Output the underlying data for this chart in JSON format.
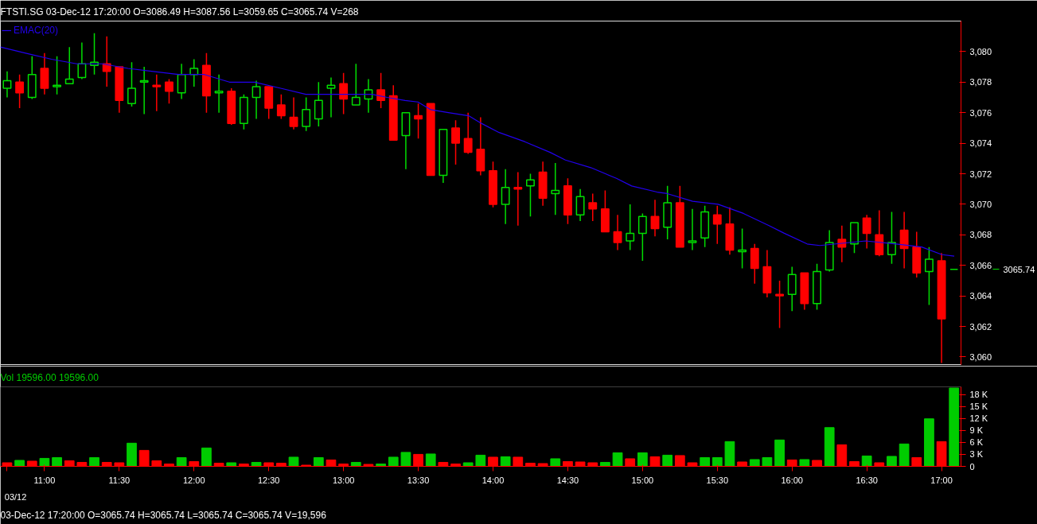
{
  "chart_data": [
    {
      "type": "candlestick",
      "title": "FTSTI.SG 03-Dec-12 17:20:00   O=3086.49   H=3087.56   L=3059.65   C=3065.74   V=268",
      "x": [
        10.75,
        10.8333,
        10.9167,
        11,
        11.0833,
        11.1667,
        11.25,
        11.3333,
        11.4167,
        11.5,
        11.5833,
        11.6667,
        11.75,
        11.8333,
        11.9167,
        12,
        12.0833,
        12.1667,
        12.25,
        12.3333,
        12.4167,
        12.5,
        12.5833,
        12.6667,
        12.75,
        12.8333,
        12.9167,
        13,
        13.0833,
        13.1667,
        13.25,
        13.3333,
        13.4167,
        13.5,
        13.5833,
        13.6667,
        13.75,
        13.8333,
        13.9167,
        14,
        14.0833,
        14.1667,
        14.25,
        14.3333,
        14.4167,
        14.5,
        14.5833,
        14.6667,
        14.75,
        14.8333,
        14.9167,
        15,
        15.0833,
        15.1667,
        15.25,
        15.3333,
        15.4167,
        15.5,
        15.5833,
        15.6667,
        15.75,
        15.8333,
        15.9167,
        16,
        16.0833,
        16.1667,
        16.25,
        16.3333,
        16.4167,
        16.5,
        16.5833,
        16.6667,
        16.75,
        16.8333,
        16.9167,
        17,
        17.0833
      ],
      "ohlc": [
        [
          3077.6,
          3078.7,
          3077.0,
          3078.1
        ],
        [
          3078.0,
          3078.5,
          3076.3,
          3077.3
        ],
        [
          3077.0,
          3079.7,
          3076.9,
          3078.5
        ],
        [
          3078.9,
          3079.9,
          3077.2,
          3077.6
        ],
        [
          3077.7,
          3079.7,
          3077.2,
          3077.8
        ],
        [
          3077.9,
          3080.3,
          3077.9,
          3078.2
        ],
        [
          3078.3,
          3080.6,
          3078.2,
          3079.2
        ],
        [
          3079.1,
          3081.2,
          3078.5,
          3079.3
        ],
        [
          3079.2,
          3081.0,
          3077.7,
          3078.7
        ],
        [
          3079.0,
          3079.0,
          3076.0,
          3076.8
        ],
        [
          3076.6,
          3079.3,
          3076.4,
          3077.6
        ],
        [
          3078.0,
          3079.0,
          3075.9,
          3078.1
        ],
        [
          3077.8,
          3078.5,
          3076.1,
          3077.7
        ],
        [
          3078.0,
          3078.2,
          3076.6,
          3077.4
        ],
        [
          3077.3,
          3079.2,
          3076.9,
          3078.5
        ],
        [
          3078.5,
          3079.5,
          3077.7,
          3078.9
        ],
        [
          3079.1,
          3079.9,
          3076.0,
          3077.1
        ],
        [
          3077.3,
          3078.5,
          3076.0,
          3077.4
        ],
        [
          3077.4,
          3077.6,
          3075.2,
          3075.3
        ],
        [
          3075.3,
          3077.2,
          3074.9,
          3077.0
        ],
        [
          3077.0,
          3078.1,
          3075.6,
          3077.7
        ],
        [
          3077.7,
          3077.7,
          3075.6,
          3076.3
        ],
        [
          3076.5,
          3077.2,
          3075.6,
          3075.8
        ],
        [
          3075.7,
          3077.0,
          3074.9,
          3075.1
        ],
        [
          3075.1,
          3077.0,
          3074.8,
          3076.2
        ],
        [
          3075.6,
          3078.0,
          3075.1,
          3076.8
        ],
        [
          3077.6,
          3078.3,
          3075.7,
          3077.8
        ],
        [
          3077.9,
          3078.6,
          3075.9,
          3076.9
        ],
        [
          3076.5,
          3079.2,
          3076.5,
          3077.0
        ],
        [
          3076.9,
          3078.2,
          3076.0,
          3077.5
        ],
        [
          3077.5,
          3078.6,
          3076.3,
          3076.8
        ],
        [
          3077.1,
          3077.8,
          3074.2,
          3074.2
        ],
        [
          3074.5,
          3076.0,
          3072.3,
          3076.0
        ],
        [
          3075.8,
          3076.6,
          3074.3,
          3075.6
        ],
        [
          3076.6,
          3076.6,
          3071.9,
          3071.9
        ],
        [
          3071.9,
          3074.9,
          3071.4,
          3074.9
        ],
        [
          3075.0,
          3075.5,
          3072.6,
          3074.0
        ],
        [
          3074.3,
          3076.0,
          3073.3,
          3073.4
        ],
        [
          3073.6,
          3075.7,
          3071.9,
          3072.2
        ],
        [
          3072.2,
          3072.8,
          3069.8,
          3070.0
        ],
        [
          3070.0,
          3072.3,
          3068.7,
          3071.1
        ],
        [
          3071.1,
          3072.1,
          3068.6,
          3071.0
        ],
        [
          3071.2,
          3072.0,
          3069.2,
          3071.6
        ],
        [
          3072.1,
          3072.8,
          3069.9,
          3070.4
        ],
        [
          3070.7,
          3072.7,
          3069.3,
          3070.9
        ],
        [
          3071.2,
          3071.7,
          3068.7,
          3069.3
        ],
        [
          3069.3,
          3071.0,
          3068.9,
          3070.5
        ],
        [
          3070.1,
          3070.7,
          3068.9,
          3069.7
        ],
        [
          3069.7,
          3070.9,
          3068.2,
          3068.2
        ],
        [
          3068.2,
          3069.3,
          3067.0,
          3067.5
        ],
        [
          3067.6,
          3070.0,
          3067.0,
          3068.1
        ],
        [
          3068.1,
          3069.4,
          3066.3,
          3069.2
        ],
        [
          3069.2,
          3070.3,
          3067.9,
          3068.4
        ],
        [
          3068.5,
          3071.2,
          3067.7,
          3070.1
        ],
        [
          3070.1,
          3071.2,
          3067.2,
          3067.2
        ],
        [
          3067.5,
          3069.7,
          3067.0,
          3067.6
        ],
        [
          3067.8,
          3069.9,
          3067.2,
          3069.5
        ],
        [
          3069.3,
          3069.9,
          3067.4,
          3068.7
        ],
        [
          3068.7,
          3069.8,
          3066.7,
          3067.0
        ],
        [
          3066.9,
          3068.4,
          3065.8,
          3067.0
        ],
        [
          3067.1,
          3067.4,
          3064.8,
          3065.8
        ],
        [
          3065.9,
          3067.0,
          3063.9,
          3064.2
        ],
        [
          3064.1,
          3065.0,
          3061.9,
          3064.0
        ],
        [
          3064.1,
          3065.9,
          3063.0,
          3065.4
        ],
        [
          3065.5,
          3065.5,
          3063.1,
          3063.5
        ],
        [
          3063.5,
          3066.1,
          3063.1,
          3065.6
        ],
        [
          3065.7,
          3068.3,
          3065.6,
          3067.5
        ],
        [
          3067.7,
          3068.6,
          3066.2,
          3067.2
        ],
        [
          3067.4,
          3068.8,
          3066.8,
          3068.8
        ],
        [
          3069.1,
          3069.3,
          3067.1,
          3068.1
        ],
        [
          3068.0,
          3069.6,
          3066.6,
          3066.7
        ],
        [
          3066.7,
          3069.5,
          3066.1,
          3067.5
        ],
        [
          3068.3,
          3069.5,
          3065.8,
          3067.1
        ],
        [
          3067.2,
          3068.2,
          3065.2,
          3065.5
        ],
        [
          3065.6,
          3067.2,
          3063.4,
          3066.4
        ],
        [
          3066.3,
          3066.8,
          3059.6,
          3062.5
        ],
        [
          3065.74,
          3065.74,
          3065.74,
          3065.74
        ]
      ],
      "colors": [
        "#00dd00",
        "#ff0000",
        "#00dd00",
        "#ff0000",
        "#00dd00",
        "#00dd00",
        "#00dd00",
        "#00dd00",
        "#ff0000",
        "#ff0000",
        "#00dd00",
        "#00dd00",
        "#ff0000",
        "#ff0000",
        "#00dd00",
        "#00dd00",
        "#ff0000",
        "#00dd00",
        "#ff0000",
        "#00dd00",
        "#00dd00",
        "#ff0000",
        "#ff0000",
        "#ff0000",
        "#00dd00",
        "#00dd00",
        "#00dd00",
        "#ff0000",
        "#00dd00",
        "#00dd00",
        "#ff0000",
        "#ff0000",
        "#00dd00",
        "#ff0000",
        "#ff0000",
        "#00dd00",
        "#ff0000",
        "#ff0000",
        "#ff0000",
        "#ff0000",
        "#00dd00",
        "#ff0000",
        "#00dd00",
        "#ff0000",
        "#00dd00",
        "#ff0000",
        "#00dd00",
        "#ff0000",
        "#ff0000",
        "#ff0000",
        "#00dd00",
        "#00dd00",
        "#ff0000",
        "#00dd00",
        "#ff0000",
        "#00dd00",
        "#00dd00",
        "#ff0000",
        "#ff0000",
        "#00dd00",
        "#ff0000",
        "#ff0000",
        "#ff0000",
        "#00dd00",
        "#ff0000",
        "#00dd00",
        "#00dd00",
        "#ff0000",
        "#00dd00",
        "#ff0000",
        "#ff0000",
        "#00dd00",
        "#ff0000",
        "#ff0000",
        "#00dd00",
        "#ff0000",
        "#00dd00"
      ],
      "series": [
        {
          "name": "EMAC(20)",
          "type": "line",
          "color": "#2200ee",
          "x": [
            10.705,
            10.874,
            11.047,
            11.216,
            11.385,
            11.558,
            11.727,
            11.895,
            12.069,
            12.237,
            12.406,
            12.58,
            12.748,
            12.85,
            13.02,
            13.191,
            13.293,
            13.412,
            13.497,
            13.582,
            13.701,
            13.837,
            13.922,
            14.041,
            14.212,
            14.382,
            14.484,
            14.654,
            14.825,
            14.927,
            15.097,
            15.165,
            15.335,
            15.505,
            15.675,
            15.846,
            15.948,
            16.101,
            16.186,
            16.492,
            16.697,
            16.867,
            17.003,
            17.085
          ],
          "values": [
            3080.3,
            3079.9,
            3079.5,
            3079.2,
            3079.2,
            3078.9,
            3078.7,
            3078.5,
            3078.5,
            3078.0,
            3078.0,
            3077.6,
            3077.2,
            3077.2,
            3077.2,
            3077.2,
            3077.0,
            3076.8,
            3076.7,
            3076.2,
            3076.0,
            3075.8,
            3075.3,
            3074.7,
            3074.1,
            3073.4,
            3072.9,
            3072.4,
            3071.7,
            3071.2,
            3070.8,
            3070.7,
            3070.2,
            3070.0,
            3069.4,
            3068.6,
            3068.1,
            3067.4,
            3067.3,
            3067.6,
            3067.4,
            3067.2,
            3066.7,
            3066.6
          ]
        }
      ],
      "xlim": [
        10.705,
        17.13
      ],
      "ylim": [
        3059.5,
        3082.0
      ],
      "yticks": [
        {
          "value": 3060,
          "label": "3,060"
        },
        {
          "value": 3062,
          "label": "3,062"
        },
        {
          "value": 3064,
          "label": "3,064"
        },
        {
          "value": 3066,
          "label": "3,066"
        },
        {
          "value": 3068,
          "label": "3,068"
        },
        {
          "value": 3070,
          "label": "3,070"
        },
        {
          "value": 3072,
          "label": "3,072"
        },
        {
          "value": 3074,
          "label": "3,074"
        },
        {
          "value": 3076,
          "label": "3,076"
        },
        {
          "value": 3078,
          "label": "3,078"
        },
        {
          "value": 3080,
          "label": "3,080"
        }
      ],
      "annotations": [
        "3065.74"
      ],
      "tick_labels": "y",
      "legend": "top left",
      "grid": false
    },
    {
      "type": "bar",
      "title": "Vol  19596.00  19596.00",
      "x": [
        10.75,
        10.8333,
        10.9167,
        11,
        11.0833,
        11.1667,
        11.25,
        11.3333,
        11.4167,
        11.5,
        11.5833,
        11.6667,
        11.75,
        11.8333,
        11.9167,
        12,
        12.0833,
        12.1667,
        12.25,
        12.3333,
        12.4167,
        12.5,
        12.5833,
        12.6667,
        12.75,
        12.8333,
        12.9167,
        13,
        13.0833,
        13.1667,
        13.25,
        13.3333,
        13.4167,
        13.5,
        13.5833,
        13.6667,
        13.75,
        13.8333,
        13.9167,
        14,
        14.0833,
        14.1667,
        14.25,
        14.3333,
        14.4167,
        14.5,
        14.5833,
        14.6667,
        14.75,
        14.8333,
        14.9167,
        15,
        15.0833,
        15.1667,
        15.25,
        15.3333,
        15.4167,
        15.5,
        15.5833,
        15.6667,
        15.75,
        15.8333,
        15.9167,
        16,
        16.0833,
        16.1667,
        16.25,
        16.3333,
        16.4167,
        16.5,
        16.5833,
        16.6667,
        16.75,
        16.8333,
        16.9167,
        17,
        17.0833
      ],
      "values": [
        0.9,
        1.5,
        1.3,
        2.0,
        2.2,
        1.4,
        1.0,
        2.2,
        1.0,
        0.9,
        5.8,
        4.0,
        1.4,
        0.6,
        2.2,
        1.2,
        4.6,
        0.8,
        0.9,
        0.6,
        1.0,
        0.9,
        0.8,
        2.3,
        0.3,
        2.2,
        1.6,
        0.6,
        1.0,
        0.5,
        0.6,
        2.3,
        3.5,
        3.0,
        3.1,
        1.0,
        0.6,
        0.9,
        2.8,
        2.3,
        2.4,
        2.3,
        0.8,
        0.7,
        1.9,
        1.2,
        1.1,
        0.9,
        1.0,
        3.4,
        1.9,
        3.4,
        2.4,
        2.8,
        2.7,
        0.9,
        2.2,
        2.2,
        6.2,
        1.1,
        1.7,
        2.2,
        6.6,
        1.6,
        1.7,
        1.5,
        9.7,
        5.4,
        1.2,
        2.6,
        0.9,
        2.5,
        5.6,
        2.2,
        11.9,
        6.2,
        19.6
      ],
      "colors": [
        "#ff0000",
        "#00cc00",
        "#ff0000",
        "#00cc00",
        "#00cc00",
        "#ff0000",
        "#ff0000",
        "#00cc00",
        "#ff0000",
        "#ff0000",
        "#00cc00",
        "#ff0000",
        "#ff0000",
        "#ff0000",
        "#00cc00",
        "#ff0000",
        "#00cc00",
        "#ff0000",
        "#00cc00",
        "#ff0000",
        "#00cc00",
        "#ff0000",
        "#ff0000",
        "#00cc00",
        "#ff0000",
        "#00cc00",
        "#ff0000",
        "#ff0000",
        "#00cc00",
        "#ff0000",
        "#00cc00",
        "#00cc00",
        "#00cc00",
        "#ff0000",
        "#00cc00",
        "#ff0000",
        "#ff0000",
        "#00cc00",
        "#00cc00",
        "#ff0000",
        "#00cc00",
        "#ff0000",
        "#ff0000",
        "#ff0000",
        "#00cc00",
        "#ff0000",
        "#ff0000",
        "#ff0000",
        "#00cc00",
        "#00cc00",
        "#ff0000",
        "#00cc00",
        "#ff0000",
        "#00cc00",
        "#ff0000",
        "#ff0000",
        "#00cc00",
        "#00cc00",
        "#00cc00",
        "#ff0000",
        "#00cc00",
        "#00cc00",
        "#00cc00",
        "#ff0000",
        "#00cc00",
        "#ff0000",
        "#00cc00",
        "#ff0000",
        "#ff0000",
        "#00cc00",
        "#ff0000",
        "#00cc00",
        "#00cc00",
        "#ff0000",
        "#00cc00",
        "#ff0000",
        "#00cc00"
      ],
      "xlim": [
        10.705,
        17.13
      ],
      "xticks": [
        {
          "value": 10.75,
          "label": null
        },
        {
          "value": 11,
          "label": "11:00"
        },
        {
          "value": 11.5,
          "label": "11:30"
        },
        {
          "value": 12,
          "label": "12:00"
        },
        {
          "value": 12.5,
          "label": "12:30"
        },
        {
          "value": 13,
          "label": "13:00"
        },
        {
          "value": 13.5,
          "label": "13:30"
        },
        {
          "value": 14,
          "label": "14:00"
        },
        {
          "value": 14.5,
          "label": "14:30"
        },
        {
          "value": 15,
          "label": "15:00"
        },
        {
          "value": 15.5,
          "label": "15:30"
        },
        {
          "value": 16,
          "label": "16:00"
        },
        {
          "value": 16.5,
          "label": "16:30"
        },
        {
          "value": 17,
          "label": "17:00"
        }
      ],
      "ylim": [
        0,
        19.9
      ],
      "yticks": [
        0,
        {
          "value": 3,
          "label": "3 K"
        },
        {
          "value": 6,
          "label": "6 K"
        },
        {
          "value": 9,
          "label": "9 K"
        },
        {
          "value": 12,
          "label": "12 K"
        },
        {
          "value": 15,
          "label": "15 K"
        },
        {
          "value": 18,
          "label": "18 K"
        }
      ],
      "annotations": [
        "03/12",
        "03-Dec-12 17:20:00   O=3065.74   H=3065.74   L=3065.74   C=3065.74   V=19,596"
      ],
      "grid": false
    }
  ]
}
